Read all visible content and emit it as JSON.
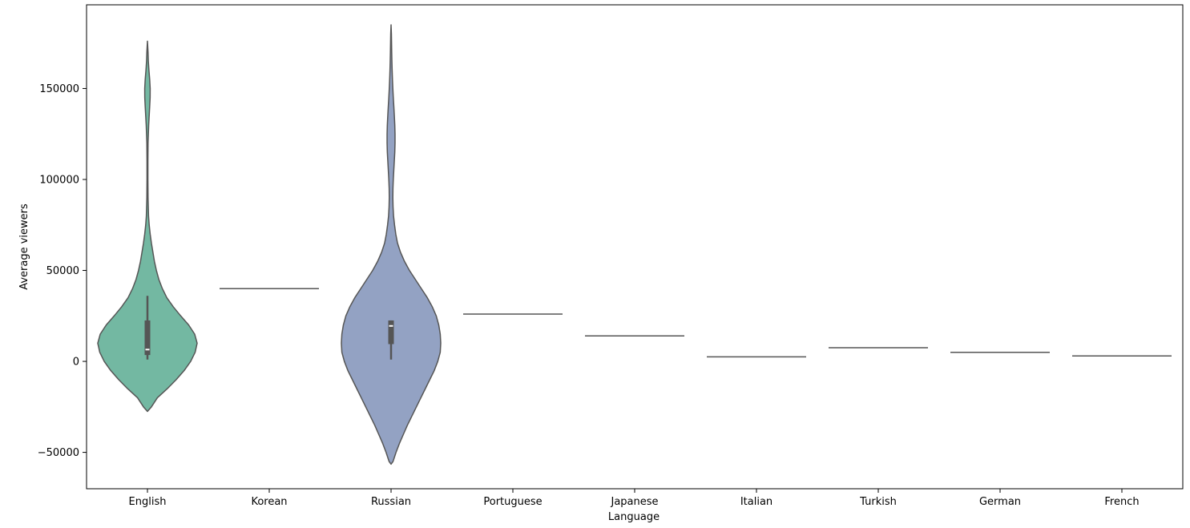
{
  "chart_data": {
    "type": "violin",
    "xlabel": "Language",
    "ylabel": "Average viewers",
    "ylim": [
      -70000,
      196000
    ],
    "yticks": [
      -50000,
      0,
      50000,
      100000,
      150000
    ],
    "ytick_labels": [
      "−50000",
      "0",
      "50000",
      "100000",
      "150000"
    ],
    "grid": false,
    "categories": [
      "English",
      "Korean",
      "Russian",
      "Portuguese",
      "Japanese",
      "Italian",
      "Turkish",
      "German",
      "French"
    ],
    "violins": [
      {
        "category": "English",
        "color": "#73b8a2",
        "box": {
          "q1": 3500,
          "median": 6500,
          "q3": 22500,
          "whisker_low": 1000,
          "whisker_high": 36000
        },
        "profile": [
          [
            -27500,
            0.0
          ],
          [
            -25000,
            0.08
          ],
          [
            -20000,
            0.2
          ],
          [
            -15000,
            0.4
          ],
          [
            -10000,
            0.58
          ],
          [
            -5000,
            0.74
          ],
          [
            0,
            0.87
          ],
          [
            5000,
            0.96
          ],
          [
            10000,
            1.0
          ],
          [
            15000,
            0.95
          ],
          [
            20000,
            0.83
          ],
          [
            25000,
            0.67
          ],
          [
            30000,
            0.52
          ],
          [
            35000,
            0.39
          ],
          [
            40000,
            0.3
          ],
          [
            45000,
            0.23
          ],
          [
            50000,
            0.18
          ],
          [
            55000,
            0.14
          ],
          [
            60000,
            0.11
          ],
          [
            65000,
            0.08
          ],
          [
            70000,
            0.055
          ],
          [
            75000,
            0.035
          ],
          [
            80000,
            0.022
          ],
          [
            90000,
            0.012
          ],
          [
            100000,
            0.009
          ],
          [
            110000,
            0.009
          ],
          [
            120000,
            0.012
          ],
          [
            130000,
            0.025
          ],
          [
            140000,
            0.045
          ],
          [
            145000,
            0.054
          ],
          [
            150000,
            0.055
          ],
          [
            155000,
            0.045
          ],
          [
            160000,
            0.03
          ],
          [
            165000,
            0.018
          ],
          [
            170000,
            0.012
          ],
          [
            176000,
            0.0
          ]
        ]
      },
      {
        "category": "Korean",
        "color": "#e8896a",
        "line_value": 40000
      },
      {
        "category": "Russian",
        "color": "#93a2c3",
        "box": {
          "q1": 9500,
          "median": 19500,
          "q3": 22500,
          "whisker_low": 1000,
          "whisker_high": 22500
        },
        "profile": [
          [
            -56500,
            0.0
          ],
          [
            -55000,
            0.04
          ],
          [
            -50000,
            0.1
          ],
          [
            -45000,
            0.17
          ],
          [
            -40000,
            0.25
          ],
          [
            -35000,
            0.33
          ],
          [
            -30000,
            0.42
          ],
          [
            -25000,
            0.51
          ],
          [
            -20000,
            0.6
          ],
          [
            -15000,
            0.69
          ],
          [
            -10000,
            0.78
          ],
          [
            -5000,
            0.87
          ],
          [
            0,
            0.94
          ],
          [
            5000,
            0.99
          ],
          [
            10000,
            1.0
          ],
          [
            15000,
            0.99
          ],
          [
            20000,
            0.96
          ],
          [
            25000,
            0.91
          ],
          [
            30000,
            0.83
          ],
          [
            35000,
            0.73
          ],
          [
            40000,
            0.61
          ],
          [
            45000,
            0.49
          ],
          [
            50000,
            0.37
          ],
          [
            55000,
            0.27
          ],
          [
            60000,
            0.19
          ],
          [
            65000,
            0.13
          ],
          [
            70000,
            0.095
          ],
          [
            75000,
            0.07
          ],
          [
            80000,
            0.05
          ],
          [
            85000,
            0.04
          ],
          [
            90000,
            0.036
          ],
          [
            95000,
            0.038
          ],
          [
            100000,
            0.045
          ],
          [
            105000,
            0.055
          ],
          [
            110000,
            0.065
          ],
          [
            115000,
            0.075
          ],
          [
            120000,
            0.08
          ],
          [
            125000,
            0.08
          ],
          [
            130000,
            0.075
          ],
          [
            135000,
            0.066
          ],
          [
            140000,
            0.056
          ],
          [
            145000,
            0.045
          ],
          [
            150000,
            0.036
          ],
          [
            155000,
            0.028
          ],
          [
            160000,
            0.022
          ],
          [
            165000,
            0.017
          ],
          [
            170000,
            0.013
          ],
          [
            175000,
            0.01
          ],
          [
            180000,
            0.007
          ],
          [
            185000,
            0.0
          ]
        ]
      },
      {
        "category": "Portuguese",
        "color": "#c9a0cc",
        "line_value": 26000
      },
      {
        "category": "Japanese",
        "color": "#a6d05c",
        "line_value": 14000
      },
      {
        "category": "Italian",
        "color": "#f0d74a",
        "line_value": 2500
      },
      {
        "category": "Turkish",
        "color": "#dfc497",
        "line_value": 7500
      },
      {
        "category": "German",
        "color": "#b3b3b3",
        "line_value": 5000
      },
      {
        "category": "French",
        "color": "#73b8a2",
        "line_value": 3000
      }
    ]
  }
}
